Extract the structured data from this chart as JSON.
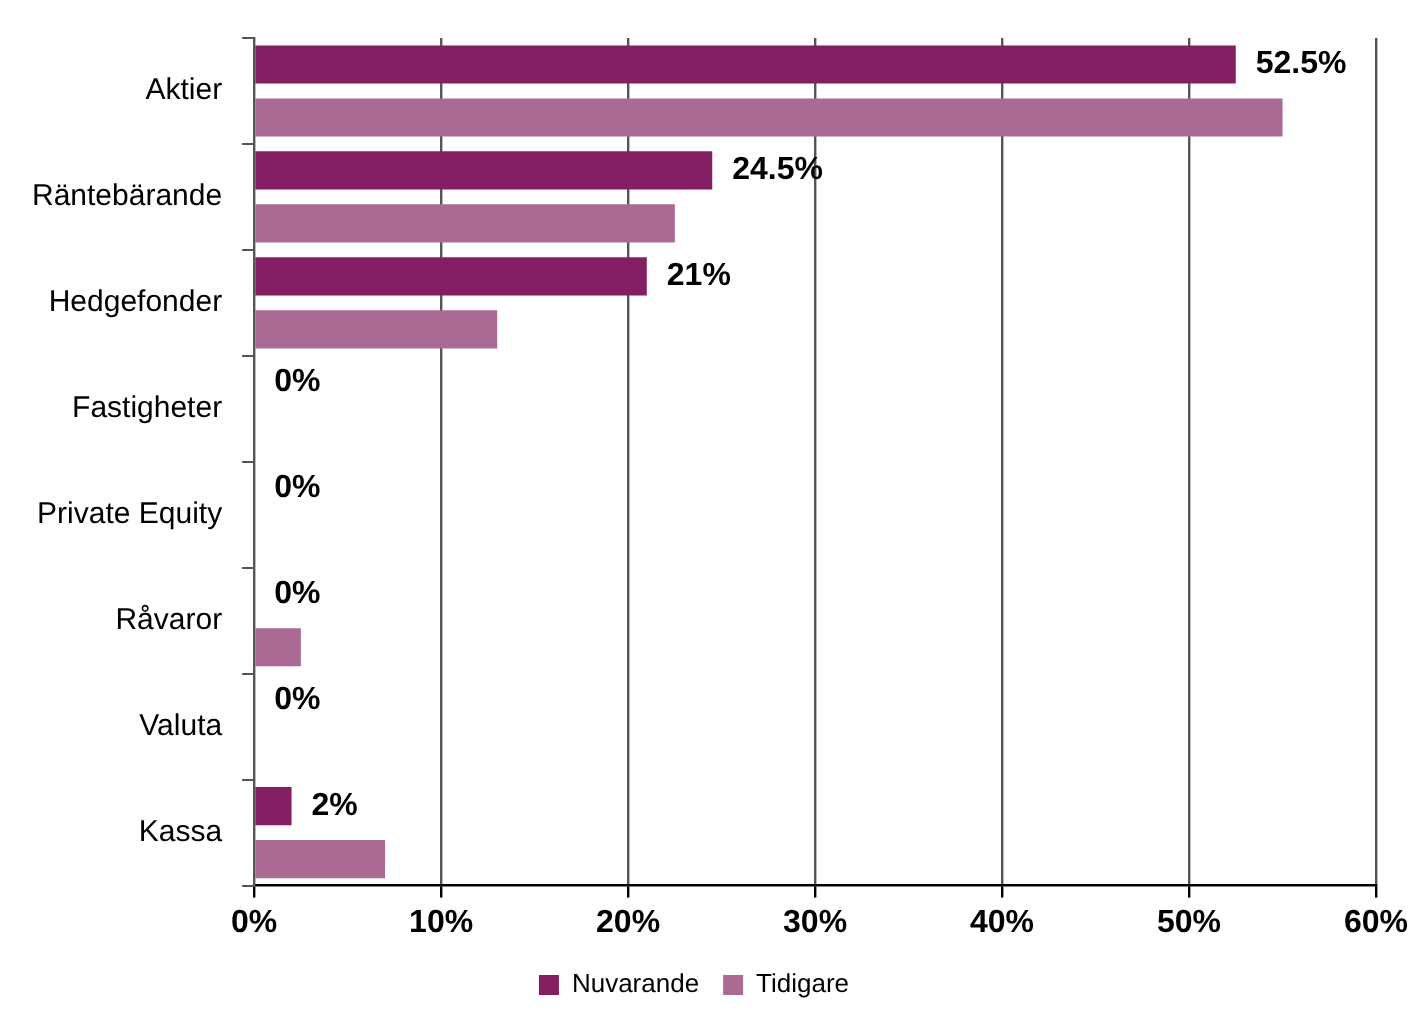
{
  "chart_data": {
    "type": "bar",
    "orientation": "horizontal",
    "categories": [
      "Aktier",
      "Räntebärande",
      "Hedgefonder",
      "Fastigheter",
      "Private Equity",
      "Råvaror",
      "Valuta",
      "Kassa"
    ],
    "series": [
      {
        "name": "Nuvarande",
        "color": "#841e62",
        "values": [
          52.5,
          24.5,
          21,
          0,
          0,
          0,
          0,
          2
        ],
        "value_labels": [
          "52.5%",
          "24.5%",
          "21%",
          "0%",
          "0%",
          "0%",
          "0%",
          "2%"
        ]
      },
      {
        "name": "Tidigare",
        "color": "#aa6a93",
        "values": [
          55,
          22.5,
          13,
          0,
          0,
          2.5,
          0,
          7
        ]
      }
    ],
    "xlim": [
      0,
      60
    ],
    "xticks": [
      {
        "value": 0,
        "label": "0%"
      },
      {
        "value": 10,
        "label": "10%"
      },
      {
        "value": 20,
        "label": "20%"
      },
      {
        "value": 30,
        "label": "30%"
      },
      {
        "value": 40,
        "label": "40%"
      },
      {
        "value": 50,
        "label": "50%"
      },
      {
        "value": 60,
        "label": "60%"
      }
    ],
    "grid": "x",
    "legend": "bottom"
  }
}
